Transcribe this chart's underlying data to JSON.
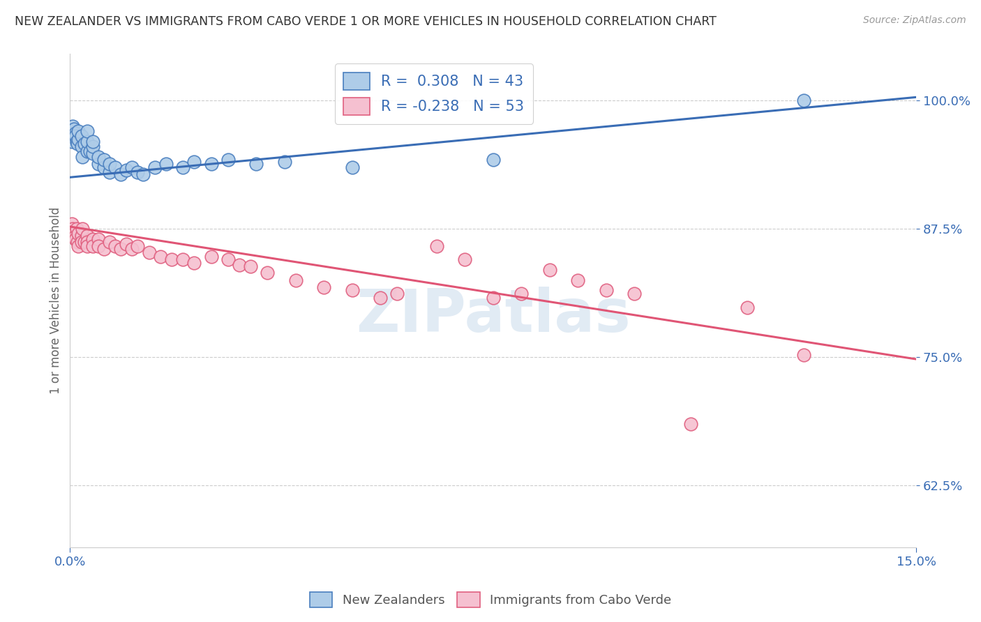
{
  "title": "NEW ZEALANDER VS IMMIGRANTS FROM CABO VERDE 1 OR MORE VEHICLES IN HOUSEHOLD CORRELATION CHART",
  "source": "Source: ZipAtlas.com",
  "ylabel": "1 or more Vehicles in Household",
  "legend_entries": [
    "New Zealanders",
    "Immigrants from Cabo Verde"
  ],
  "r_nz": 0.308,
  "n_nz": 43,
  "r_cv": -0.238,
  "n_cv": 53,
  "nz_color": "#aecce8",
  "nz_edge_color": "#4a7fbf",
  "cv_color": "#f5c0d0",
  "cv_edge_color": "#e06080",
  "nz_line_color": "#3a6db5",
  "cv_line_color": "#e05575",
  "background_color": "#ffffff",
  "grid_color": "#cccccc",
  "ytick_vals": [
    0.625,
    0.75,
    0.875,
    1.0
  ],
  "ytick_labels": [
    "62.5%",
    "75.0%",
    "87.5%",
    "100.0%"
  ],
  "x_min": 0.0,
  "x_max": 0.15,
  "y_min": 0.565,
  "y_max": 1.045,
  "nz_scatter_x": [
    0.0003,
    0.0005,
    0.0007,
    0.001,
    0.001,
    0.0012,
    0.0013,
    0.0015,
    0.0015,
    0.002,
    0.002,
    0.0022,
    0.0025,
    0.003,
    0.003,
    0.003,
    0.0035,
    0.004,
    0.004,
    0.004,
    0.005,
    0.005,
    0.006,
    0.006,
    0.007,
    0.007,
    0.008,
    0.009,
    0.01,
    0.011,
    0.012,
    0.013,
    0.015,
    0.017,
    0.02,
    0.022,
    0.025,
    0.028,
    0.033,
    0.038,
    0.05,
    0.075,
    0.13
  ],
  "nz_scatter_y": [
    0.96,
    0.975,
    0.972,
    0.968,
    0.965,
    0.96,
    0.958,
    0.962,
    0.97,
    0.955,
    0.965,
    0.945,
    0.958,
    0.95,
    0.96,
    0.97,
    0.95,
    0.948,
    0.955,
    0.96,
    0.938,
    0.945,
    0.935,
    0.942,
    0.93,
    0.938,
    0.935,
    0.928,
    0.932,
    0.935,
    0.93,
    0.928,
    0.935,
    0.938,
    0.935,
    0.94,
    0.938,
    0.942,
    0.938,
    0.94,
    0.935,
    0.942,
    1.0
  ],
  "cv_scatter_x": [
    0.0003,
    0.0005,
    0.0007,
    0.001,
    0.001,
    0.0012,
    0.0013,
    0.0015,
    0.0015,
    0.002,
    0.002,
    0.0022,
    0.0025,
    0.003,
    0.003,
    0.003,
    0.004,
    0.004,
    0.005,
    0.005,
    0.006,
    0.007,
    0.008,
    0.009,
    0.01,
    0.011,
    0.012,
    0.014,
    0.016,
    0.018,
    0.02,
    0.022,
    0.025,
    0.028,
    0.03,
    0.032,
    0.035,
    0.04,
    0.045,
    0.05,
    0.055,
    0.058,
    0.065,
    0.07,
    0.075,
    0.08,
    0.085,
    0.09,
    0.095,
    0.1,
    0.11,
    0.12,
    0.13
  ],
  "cv_scatter_y": [
    0.88,
    0.875,
    0.87,
    0.868,
    0.865,
    0.875,
    0.862,
    0.87,
    0.858,
    0.868,
    0.862,
    0.875,
    0.862,
    0.868,
    0.862,
    0.858,
    0.865,
    0.858,
    0.865,
    0.858,
    0.855,
    0.862,
    0.858,
    0.855,
    0.86,
    0.855,
    0.858,
    0.852,
    0.848,
    0.845,
    0.845,
    0.842,
    0.848,
    0.845,
    0.84,
    0.838,
    0.832,
    0.825,
    0.818,
    0.815,
    0.808,
    0.812,
    0.858,
    0.845,
    0.808,
    0.812,
    0.835,
    0.825,
    0.815,
    0.812,
    0.685,
    0.798,
    0.752
  ]
}
